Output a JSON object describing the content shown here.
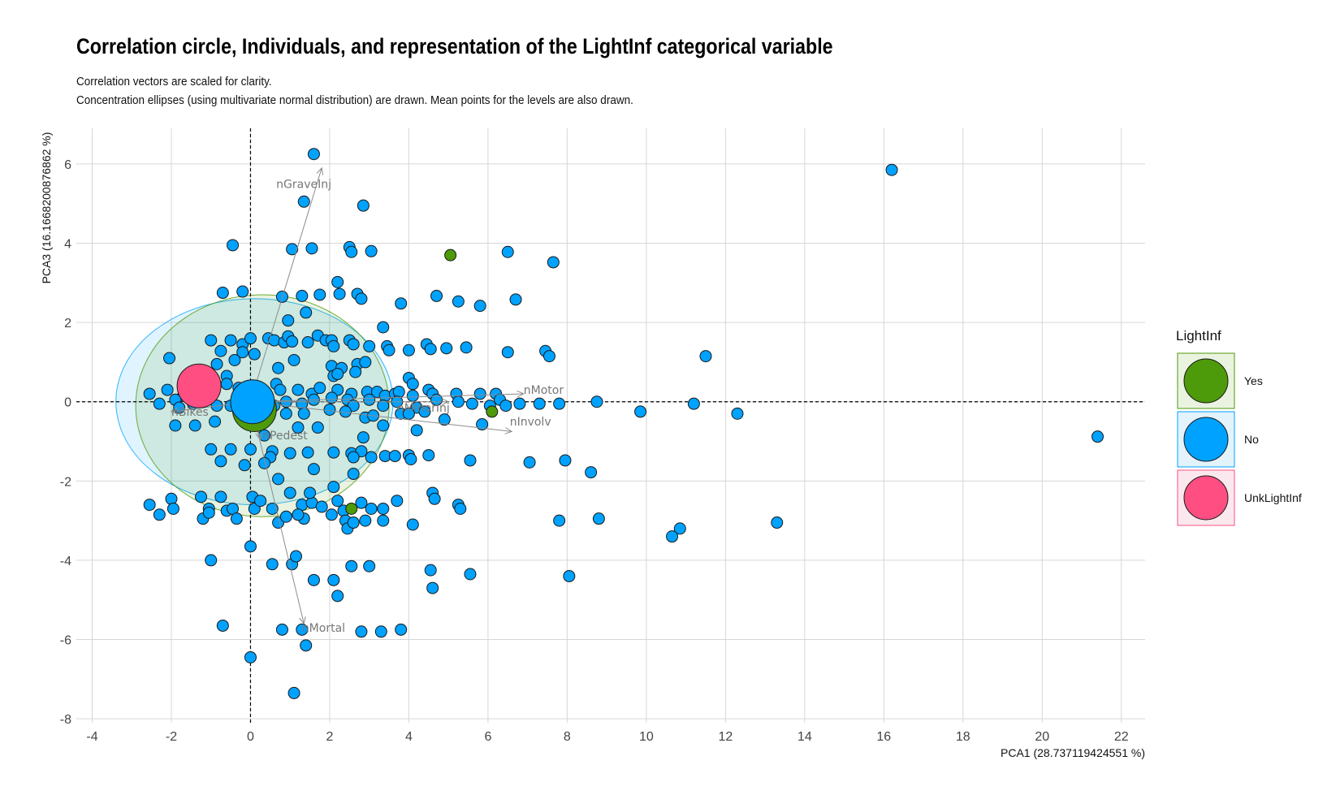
{
  "title": "Correlation circle, Individuals, and representation of the LightInf categorical variable",
  "subtitle_lines": [
    "Correlation vectors are scaled for clarity.",
    "Concentration ellipses (using multivariate normal distribution) are drawn. Mean points for the levels are also drawn."
  ],
  "chart_data": {
    "type": "scatter",
    "xlabel": "PCA1 (28.737119424551 %)",
    "ylabel": "PCA3 (16.1668200876862 %)",
    "xlim": [
      -4.4,
      22.6
    ],
    "ylim": [
      -8.1,
      6.9
    ],
    "x_ticks": [
      -4,
      -2,
      0,
      2,
      4,
      6,
      8,
      10,
      12,
      14,
      16,
      18,
      20,
      22
    ],
    "y_ticks": [
      -8,
      -6,
      -4,
      -2,
      0,
      2,
      4,
      6
    ],
    "x_tick_labels": [
      "-4",
      "-2",
      "0",
      "2",
      "4",
      "6",
      "8",
      "10",
      "12",
      "14",
      "16",
      "18",
      "20",
      "22"
    ],
    "y_tick_labels": [
      "-8",
      "-6",
      "-4",
      "-2",
      "0",
      "2",
      "4",
      "6"
    ],
    "grid": true,
    "reference_lines": "dashed lines at x=0 and y=0",
    "legend": {
      "title": "LightInf",
      "placement": "right",
      "entries": [
        {
          "label": "Yes",
          "color": "#4d9a0a",
          "fill": "#eaf3e0"
        },
        {
          "label": "No",
          "color": "#00a2ff",
          "fill": "#e3f3fb"
        },
        {
          "label": "UnkLightInf",
          "color": "#ff4f82",
          "fill": "#fbe8ee"
        }
      ]
    },
    "variables": [
      {
        "label": "nGraveInj",
        "x": 1.8,
        "y": 5.9,
        "label_x": 0.65,
        "label_y": 5.5
      },
      {
        "label": "nMotor",
        "x": 6.9,
        "y": 0.2,
        "label_x": 6.9,
        "label_y": 0.3
      },
      {
        "label": "nInvolv",
        "x": 6.6,
        "y": -0.75,
        "label_x": 6.55,
        "label_y": -0.5
      },
      {
        "label": "nMinorInj",
        "x": 5.0,
        "y": 0.0,
        "label_x": 3.7,
        "label_y": -0.15
      },
      {
        "label": "nPedest",
        "x": 0.25,
        "y": -0.95,
        "label_x": 0.3,
        "label_y": -0.85
      },
      {
        "label": "nBikes",
        "x": -2.0,
        "y": -0.25,
        "label_x": -2.0,
        "label_y": -0.25
      },
      {
        "label": "nMortal",
        "x": 1.35,
        "y": -5.6,
        "label_x": 1.3,
        "label_y": -5.7
      }
    ],
    "ellipses": [
      {
        "level": "No",
        "cx": 0.1,
        "cy": 0.0,
        "rx": 3.5,
        "ry": 2.6
      },
      {
        "level": "Yes",
        "cx": 0.3,
        "cy": -0.1,
        "rx": 3.2,
        "ry": 2.8
      }
    ],
    "means": [
      {
        "level": "No",
        "x": 0.05,
        "y": 0.0
      },
      {
        "level": "Yes",
        "x": 0.1,
        "y": -0.2
      },
      {
        "level": "UnkLightInf",
        "x": -1.3,
        "y": 0.4
      }
    ],
    "points_yes": [
      [
        5.05,
        3.7
      ],
      [
        6.1,
        -0.25
      ],
      [
        2.55,
        -2.7
      ]
    ],
    "points_no": [
      [
        1.6,
        6.25
      ],
      [
        16.2,
        5.85
      ],
      [
        1.35,
        5.05
      ],
      [
        2.85,
        4.95
      ],
      [
        -0.45,
        3.95
      ],
      [
        2.5,
        3.9
      ],
      [
        2.55,
        3.78
      ],
      [
        1.05,
        3.85
      ],
      [
        1.55,
        3.87
      ],
      [
        3.05,
        3.8
      ],
      [
        6.5,
        3.78
      ],
      [
        7.65,
        3.52
      ],
      [
        2.2,
        3.02
      ],
      [
        -0.7,
        2.75
      ],
      [
        -0.2,
        2.78
      ],
      [
        0.8,
        2.65
      ],
      [
        1.3,
        2.67
      ],
      [
        1.75,
        2.7
      ],
      [
        2.25,
        2.72
      ],
      [
        2.7,
        2.72
      ],
      [
        2.8,
        2.6
      ],
      [
        4.7,
        2.67
      ],
      [
        5.25,
        2.53
      ],
      [
        5.8,
        2.42
      ],
      [
        6.7,
        2.58
      ],
      [
        3.8,
        2.48
      ],
      [
        1.4,
        2.25
      ],
      [
        0.95,
        2.05
      ],
      [
        3.35,
        1.88
      ],
      [
        -1.0,
        1.55
      ],
      [
        -0.5,
        1.55
      ],
      [
        -0.2,
        1.45
      ],
      [
        0.0,
        1.6
      ],
      [
        0.45,
        1.6
      ],
      [
        0.6,
        1.55
      ],
      [
        0.85,
        1.5
      ],
      [
        0.95,
        1.65
      ],
      [
        1.05,
        1.52
      ],
      [
        1.45,
        1.5
      ],
      [
        1.7,
        1.67
      ],
      [
        1.9,
        1.55
      ],
      [
        2.05,
        1.55
      ],
      [
        2.5,
        1.55
      ],
      [
        2.6,
        1.45
      ],
      [
        2.1,
        1.4
      ],
      [
        3.0,
        1.4
      ],
      [
        3.45,
        1.4
      ],
      [
        3.5,
        1.3
      ],
      [
        4.0,
        1.3
      ],
      [
        4.45,
        1.45
      ],
      [
        4.55,
        1.33
      ],
      [
        4.95,
        1.35
      ],
      [
        5.45,
        1.37
      ],
      [
        6.5,
        1.25
      ],
      [
        7.45,
        1.28
      ],
      [
        7.55,
        1.15
      ],
      [
        11.5,
        1.15
      ],
      [
        -0.75,
        1.28
      ],
      [
        -2.05,
        1.1
      ],
      [
        -0.4,
        1.05
      ],
      [
        -0.2,
        1.25
      ],
      [
        0.1,
        1.2
      ],
      [
        1.1,
        1.05
      ],
      [
        2.05,
        0.9
      ],
      [
        2.3,
        0.85
      ],
      [
        2.7,
        0.95
      ],
      [
        2.9,
        1.0
      ],
      [
        0.7,
        0.85
      ],
      [
        -0.85,
        0.95
      ],
      [
        -0.6,
        0.65
      ],
      [
        2.1,
        0.65
      ],
      [
        2.2,
        0.7
      ],
      [
        2.65,
        0.75
      ],
      [
        4.0,
        0.6
      ],
      [
        4.1,
        0.45
      ],
      [
        -2.1,
        0.3
      ],
      [
        -1.7,
        0.15
      ],
      [
        -1.9,
        0.05
      ],
      [
        -2.55,
        0.2
      ],
      [
        -2.3,
        -0.05
      ],
      [
        -1.8,
        -0.15
      ],
      [
        -1.55,
        0.1
      ],
      [
        -1.0,
        0.25
      ],
      [
        -0.6,
        0.45
      ],
      [
        -0.3,
        0.35
      ],
      [
        0.65,
        0.45
      ],
      [
        0.75,
        0.3
      ],
      [
        1.2,
        0.3
      ],
      [
        1.55,
        0.2
      ],
      [
        1.75,
        0.35
      ],
      [
        2.2,
        0.3
      ],
      [
        2.55,
        0.2
      ],
      [
        2.95,
        0.25
      ],
      [
        3.2,
        0.25
      ],
      [
        3.4,
        0.15
      ],
      [
        3.65,
        0.2
      ],
      [
        3.75,
        0.25
      ],
      [
        4.5,
        0.3
      ],
      [
        4.6,
        0.2
      ],
      [
        5.2,
        0.2
      ],
      [
        5.8,
        0.2
      ],
      [
        6.2,
        0.2
      ],
      [
        6.3,
        0.05
      ],
      [
        6.8,
        -0.05
      ],
      [
        7.3,
        -0.05
      ],
      [
        7.8,
        -0.05
      ],
      [
        8.75,
        0.0
      ],
      [
        11.2,
        -0.05
      ],
      [
        -1.45,
        -0.05
      ],
      [
        -0.85,
        -0.1
      ],
      [
        -0.5,
        -0.1
      ],
      [
        0.6,
        -0.1
      ],
      [
        0.9,
        0.0
      ],
      [
        1.3,
        -0.05
      ],
      [
        1.6,
        0.05
      ],
      [
        2.05,
        0.1
      ],
      [
        2.45,
        0.05
      ],
      [
        2.6,
        -0.1
      ],
      [
        3.0,
        0.05
      ],
      [
        3.35,
        -0.1
      ],
      [
        3.7,
        0.0
      ],
      [
        4.1,
        0.15
      ],
      [
        4.2,
        -0.15
      ],
      [
        4.7,
        0.05
      ],
      [
        5.25,
        0.0
      ],
      [
        5.6,
        -0.05
      ],
      [
        6.05,
        -0.1
      ],
      [
        6.45,
        -0.1
      ],
      [
        0.3,
        -0.25
      ],
      [
        0.9,
        -0.3
      ],
      [
        1.35,
        -0.3
      ],
      [
        2.0,
        -0.2
      ],
      [
        2.4,
        -0.25
      ],
      [
        3.8,
        -0.3
      ],
      [
        4.0,
        -0.3
      ],
      [
        2.9,
        -0.4
      ],
      [
        3.1,
        -0.35
      ],
      [
        4.4,
        -0.25
      ],
      [
        4.9,
        -0.45
      ],
      [
        5.85,
        -0.57
      ],
      [
        9.85,
        -0.25
      ],
      [
        12.3,
        -0.3
      ],
      [
        21.4,
        -0.88
      ],
      [
        -1.9,
        -0.6
      ],
      [
        -1.4,
        -0.6
      ],
      [
        -0.9,
        -0.5
      ],
      [
        1.2,
        -0.65
      ],
      [
        1.7,
        -0.65
      ],
      [
        3.35,
        -0.6
      ],
      [
        4.2,
        -0.72
      ],
      [
        0.35,
        -0.85
      ],
      [
        2.85,
        -0.9
      ],
      [
        -1.0,
        -1.2
      ],
      [
        -0.5,
        -1.2
      ],
      [
        0.0,
        -1.2
      ],
      [
        0.55,
        -1.25
      ],
      [
        1.0,
        -1.3
      ],
      [
        1.45,
        -1.28
      ],
      [
        2.1,
        -1.28
      ],
      [
        2.55,
        -1.3
      ],
      [
        2.8,
        -1.25
      ],
      [
        3.05,
        -1.4
      ],
      [
        3.4,
        -1.37
      ],
      [
        3.65,
        -1.37
      ],
      [
        4.0,
        -1.35
      ],
      [
        4.05,
        -1.45
      ],
      [
        4.5,
        -1.35
      ],
      [
        0.5,
        -1.4
      ],
      [
        -0.75,
        -1.5
      ],
      [
        -0.15,
        -1.6
      ],
      [
        0.35,
        -1.55
      ],
      [
        1.6,
        -1.7
      ],
      [
        2.6,
        -1.4
      ],
      [
        5.55,
        -1.48
      ],
      [
        7.05,
        -1.53
      ],
      [
        7.95,
        -1.48
      ],
      [
        8.6,
        -1.78
      ],
      [
        0.7,
        -1.95
      ],
      [
        2.6,
        -1.82
      ],
      [
        2.1,
        -2.15
      ],
      [
        -2.55,
        -2.6
      ],
      [
        -2.3,
        -2.85
      ],
      [
        -2.0,
        -2.45
      ],
      [
        -1.95,
        -2.7
      ],
      [
        -1.25,
        -2.4
      ],
      [
        -1.2,
        -2.95
      ],
      [
        -1.05,
        -2.7
      ],
      [
        -1.05,
        -2.8
      ],
      [
        -0.75,
        -2.4
      ],
      [
        -0.6,
        -2.75
      ],
      [
        -0.45,
        -2.7
      ],
      [
        -0.35,
        -2.95
      ],
      [
        0.05,
        -2.4
      ],
      [
        0.1,
        -2.7
      ],
      [
        0.25,
        -2.5
      ],
      [
        0.55,
        -2.7
      ],
      [
        0.7,
        -3.05
      ],
      [
        0.9,
        -2.9
      ],
      [
        1.3,
        -2.6
      ],
      [
        1.35,
        -2.95
      ],
      [
        1.55,
        -2.55
      ],
      [
        1.8,
        -2.65
      ],
      [
        2.05,
        -2.85
      ],
      [
        2.2,
        -2.5
      ],
      [
        2.35,
        -2.75
      ],
      [
        2.4,
        -3.0
      ],
      [
        2.45,
        -3.2
      ],
      [
        2.6,
        -3.05
      ],
      [
        2.8,
        -2.55
      ],
      [
        2.9,
        -3.0
      ],
      [
        3.05,
        -2.7
      ],
      [
        3.35,
        -3.0
      ],
      [
        3.35,
        -2.7
      ],
      [
        3.7,
        -2.5
      ],
      [
        4.1,
        -3.1
      ],
      [
        4.6,
        -2.3
      ],
      [
        4.65,
        -2.45
      ],
      [
        5.25,
        -2.6
      ],
      [
        5.3,
        -2.7
      ],
      [
        7.8,
        -3.0
      ],
      [
        8.8,
        -2.95
      ],
      [
        10.85,
        -3.2
      ],
      [
        10.65,
        -3.4
      ],
      [
        13.3,
        -3.05
      ],
      [
        1.0,
        -2.3
      ],
      [
        1.5,
        -2.3
      ],
      [
        1.2,
        -2.85
      ],
      [
        0.0,
        -3.65
      ],
      [
        -1.0,
        -4.0
      ],
      [
        0.55,
        -4.1
      ],
      [
        1.05,
        -4.1
      ],
      [
        1.15,
        -3.9
      ],
      [
        2.55,
        -4.15
      ],
      [
        3.0,
        -4.15
      ],
      [
        2.1,
        -4.5
      ],
      [
        1.6,
        -4.5
      ],
      [
        4.55,
        -4.25
      ],
      [
        4.6,
        -4.7
      ],
      [
        5.55,
        -4.35
      ],
      [
        8.05,
        -4.4
      ],
      [
        2.2,
        -4.9
      ],
      [
        -0.7,
        -5.65
      ],
      [
        0.8,
        -5.75
      ],
      [
        1.3,
        -5.75
      ],
      [
        2.8,
        -5.8
      ],
      [
        3.3,
        -5.8
      ],
      [
        3.8,
        -5.75
      ],
      [
        1.4,
        -6.15
      ],
      [
        0.0,
        -6.45
      ],
      [
        1.1,
        -7.35
      ]
    ]
  }
}
